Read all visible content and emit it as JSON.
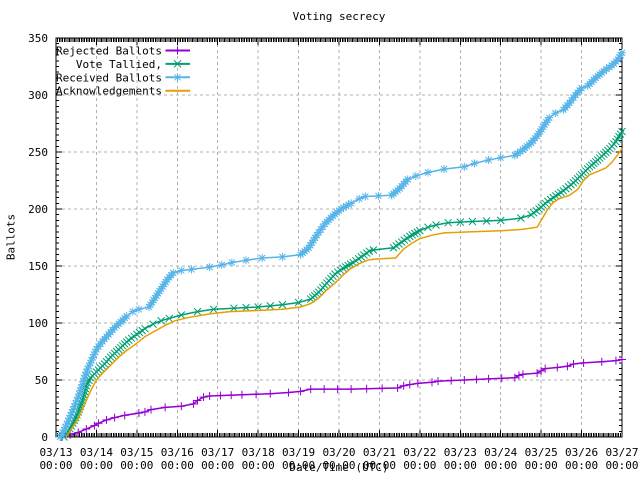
{
  "chart_data": {
    "type": "line",
    "title": "Voting secrecy",
    "xlabel": "Date/Time (UTC)",
    "ylabel": "Ballots",
    "grid": true,
    "legend_position": "top-left-inside",
    "xlim_days": [
      0,
      14
    ],
    "ylim": [
      0,
      350
    ],
    "x_axis": {
      "tick_days": [
        0,
        1,
        2,
        3,
        4,
        5,
        6,
        7,
        8,
        9,
        10,
        11,
        12,
        13,
        14
      ],
      "tick_labels": [
        "03/13",
        "03/14",
        "03/15",
        "03/16",
        "03/17",
        "03/18",
        "03/19",
        "03/20",
        "03/21",
        "03/22",
        "03/23",
        "03/24",
        "03/25",
        "03/26",
        "03/27"
      ],
      "tick_sublabel": "00:00",
      "minor_ticks_per_day": 24
    },
    "y_axis": {
      "tick_values": [
        0,
        50,
        100,
        150,
        200,
        250,
        300,
        350
      ],
      "tick_labels": [
        "0",
        "50",
        "100",
        "150",
        "200",
        "250",
        "300",
        "350"
      ],
      "minor_tick_step": 5
    },
    "series": [
      {
        "name": "Rejected Ballots",
        "color": "#9400d3",
        "marker": "plus",
        "points": [
          [
            0.15,
            0
          ],
          [
            0.35,
            2
          ],
          [
            0.55,
            4
          ],
          [
            0.75,
            7
          ],
          [
            0.95,
            10
          ],
          [
            1.05,
            12
          ],
          [
            1.25,
            15
          ],
          [
            1.45,
            17
          ],
          [
            1.7,
            19
          ],
          [
            2.05,
            21
          ],
          [
            2.2,
            22
          ],
          [
            2.35,
            24
          ],
          [
            2.7,
            26
          ],
          [
            3.1,
            27
          ],
          [
            3.4,
            29
          ],
          [
            3.5,
            32
          ],
          [
            3.65,
            35
          ],
          [
            3.8,
            36
          ],
          [
            4.6,
            37
          ],
          [
            5.3,
            38
          ],
          [
            5.75,
            39
          ],
          [
            6.05,
            40
          ],
          [
            6.3,
            42
          ],
          [
            7.3,
            42
          ],
          [
            8.45,
            43
          ],
          [
            8.6,
            45
          ],
          [
            8.75,
            46
          ],
          [
            8.95,
            47
          ],
          [
            9.3,
            48
          ],
          [
            9.45,
            49
          ],
          [
            10.1,
            50
          ],
          [
            10.7,
            51
          ],
          [
            11.35,
            52
          ],
          [
            11.45,
            54
          ],
          [
            11.55,
            55
          ],
          [
            11.9,
            56
          ],
          [
            12.0,
            58
          ],
          [
            12.1,
            60
          ],
          [
            12.4,
            61
          ],
          [
            12.65,
            62
          ],
          [
            12.8,
            64
          ],
          [
            13.05,
            65
          ],
          [
            13.5,
            66
          ],
          [
            13.85,
            67
          ],
          [
            14.0,
            68
          ]
        ]
      },
      {
        "name": "Vote Tallied,",
        "color": "#009e73",
        "marker": "cross",
        "points": [
          [
            0.2,
            0
          ],
          [
            0.3,
            5
          ],
          [
            0.42,
            12
          ],
          [
            0.55,
            22
          ],
          [
            0.65,
            32
          ],
          [
            0.75,
            45
          ],
          [
            0.85,
            52
          ],
          [
            1.0,
            57
          ],
          [
            1.2,
            64
          ],
          [
            1.35,
            70
          ],
          [
            1.5,
            75
          ],
          [
            1.65,
            80
          ],
          [
            1.8,
            85
          ],
          [
            2.0,
            90
          ],
          [
            2.2,
            95
          ],
          [
            2.4,
            99
          ],
          [
            2.6,
            102
          ],
          [
            2.8,
            104
          ],
          [
            3.1,
            107
          ],
          [
            3.5,
            110
          ],
          [
            3.9,
            112
          ],
          [
            4.4,
            113
          ],
          [
            5.0,
            114
          ],
          [
            5.6,
            116
          ],
          [
            6.0,
            118
          ],
          [
            6.3,
            121
          ],
          [
            6.5,
            127
          ],
          [
            6.7,
            135
          ],
          [
            6.9,
            143
          ],
          [
            7.1,
            148
          ],
          [
            7.35,
            153
          ],
          [
            7.55,
            158
          ],
          [
            7.75,
            163
          ],
          [
            7.85,
            164
          ],
          [
            8.35,
            166
          ],
          [
            8.55,
            171
          ],
          [
            8.75,
            176
          ],
          [
            9.0,
            181
          ],
          [
            9.2,
            184
          ],
          [
            9.4,
            186
          ],
          [
            9.7,
            188
          ],
          [
            10.3,
            189
          ],
          [
            11.0,
            190
          ],
          [
            11.5,
            192
          ],
          [
            11.75,
            195
          ],
          [
            11.95,
            200
          ],
          [
            12.1,
            205
          ],
          [
            12.3,
            210
          ],
          [
            12.55,
            216
          ],
          [
            12.8,
            223
          ],
          [
            13.0,
            230
          ],
          [
            13.2,
            237
          ],
          [
            13.4,
            243
          ],
          [
            13.55,
            248
          ],
          [
            13.7,
            253
          ],
          [
            13.85,
            259
          ],
          [
            14.0,
            268
          ]
        ]
      },
      {
        "name": "Received Ballots",
        "color": "#56b4e9",
        "marker": "star",
        "points": [
          [
            0.1,
            0
          ],
          [
            0.2,
            6
          ],
          [
            0.3,
            14
          ],
          [
            0.42,
            24
          ],
          [
            0.55,
            35
          ],
          [
            0.65,
            46
          ],
          [
            0.75,
            57
          ],
          [
            0.85,
            65
          ],
          [
            1.0,
            77
          ],
          [
            1.15,
            84
          ],
          [
            1.3,
            90
          ],
          [
            1.45,
            96
          ],
          [
            1.6,
            101
          ],
          [
            1.75,
            106
          ],
          [
            1.9,
            110
          ],
          [
            2.05,
            112
          ],
          [
            2.3,
            114
          ],
          [
            2.45,
            122
          ],
          [
            2.6,
            130
          ],
          [
            2.75,
            138
          ],
          [
            2.9,
            144
          ],
          [
            3.1,
            146
          ],
          [
            3.35,
            147
          ],
          [
            3.8,
            149
          ],
          [
            4.1,
            151
          ],
          [
            4.35,
            153
          ],
          [
            4.7,
            155
          ],
          [
            5.1,
            157
          ],
          [
            5.6,
            158
          ],
          [
            6.05,
            160
          ],
          [
            6.25,
            166
          ],
          [
            6.45,
            177
          ],
          [
            6.65,
            187
          ],
          [
            6.85,
            194
          ],
          [
            7.05,
            200
          ],
          [
            7.3,
            205
          ],
          [
            7.5,
            209
          ],
          [
            7.65,
            211
          ],
          [
            8.3,
            212
          ],
          [
            8.5,
            218
          ],
          [
            8.7,
            226
          ],
          [
            8.9,
            229
          ],
          [
            9.2,
            232
          ],
          [
            9.6,
            235
          ],
          [
            10.1,
            237
          ],
          [
            10.35,
            240
          ],
          [
            10.7,
            243
          ],
          [
            11.0,
            245
          ],
          [
            11.35,
            247
          ],
          [
            11.55,
            252
          ],
          [
            11.75,
            258
          ],
          [
            11.9,
            264
          ],
          [
            12.05,
            272
          ],
          [
            12.2,
            280
          ],
          [
            12.35,
            284
          ],
          [
            12.55,
            287
          ],
          [
            12.7,
            293
          ],
          [
            12.85,
            300
          ],
          [
            13.0,
            306
          ],
          [
            13.15,
            308
          ],
          [
            13.35,
            315
          ],
          [
            13.55,
            321
          ],
          [
            13.75,
            326
          ],
          [
            13.9,
            331
          ],
          [
            14.0,
            337
          ]
        ]
      },
      {
        "name": "Acknowledgements",
        "color": "#e69f00",
        "marker": "none",
        "points": [
          [
            0.25,
            0
          ],
          [
            0.4,
            8
          ],
          [
            0.55,
            16
          ],
          [
            0.7,
            28
          ],
          [
            0.85,
            40
          ],
          [
            1.0,
            50
          ],
          [
            1.15,
            56
          ],
          [
            1.35,
            63
          ],
          [
            1.55,
            70
          ],
          [
            1.75,
            76
          ],
          [
            1.95,
            81
          ],
          [
            2.2,
            88
          ],
          [
            2.45,
            93
          ],
          [
            2.7,
            98
          ],
          [
            2.95,
            102
          ],
          [
            3.3,
            105
          ],
          [
            3.8,
            108
          ],
          [
            4.3,
            110
          ],
          [
            5.0,
            111
          ],
          [
            5.6,
            112
          ],
          [
            6.05,
            114
          ],
          [
            6.3,
            117
          ],
          [
            6.5,
            122
          ],
          [
            6.7,
            129
          ],
          [
            6.9,
            135
          ],
          [
            7.1,
            142
          ],
          [
            7.3,
            148
          ],
          [
            7.5,
            152
          ],
          [
            7.7,
            155
          ],
          [
            7.85,
            156
          ],
          [
            8.4,
            157
          ],
          [
            8.6,
            165
          ],
          [
            8.8,
            170
          ],
          [
            9.0,
            174
          ],
          [
            9.3,
            177
          ],
          [
            9.6,
            179
          ],
          [
            10.3,
            180
          ],
          [
            11.0,
            181
          ],
          [
            11.5,
            182
          ],
          [
            11.9,
            184
          ],
          [
            12.05,
            193
          ],
          [
            12.15,
            199
          ],
          [
            12.3,
            206
          ],
          [
            12.45,
            209
          ],
          [
            12.7,
            212
          ],
          [
            12.9,
            217
          ],
          [
            13.05,
            225
          ],
          [
            13.2,
            230
          ],
          [
            13.4,
            233
          ],
          [
            13.6,
            236
          ],
          [
            13.75,
            241
          ],
          [
            13.9,
            248
          ],
          [
            14.0,
            253
          ]
        ]
      }
    ],
    "colors": {
      "background": "#ffffff",
      "border": "#000000",
      "grid": "#b0b0b0",
      "text": "#000000"
    }
  }
}
